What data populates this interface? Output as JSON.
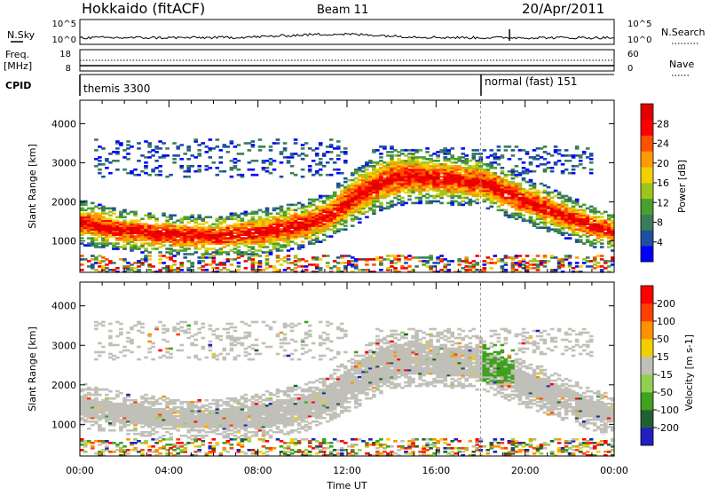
{
  "header": {
    "station": "Hokkaido (fitACF)",
    "beam": "Beam 11",
    "date": "20/Apr/2011"
  },
  "side_labels": {
    "nsky": "N.Sky",
    "nsearch": "N.Search",
    "freq_line1": "Freq.",
    "freq_line2": "[MHz]",
    "nave": "Nave",
    "cpid": "CPID"
  },
  "noise_panel": {
    "left_ticks": [
      "10^5",
      "10^0"
    ],
    "right_ticks": [
      "10^5",
      "10^0"
    ]
  },
  "freq_panel": {
    "left_ticks": [
      "18",
      "8"
    ],
    "right_ticks": [
      "60",
      "0"
    ]
  },
  "cpid_panel": {
    "segments": [
      {
        "label": "themis 3300",
        "start_hour": 0
      },
      {
        "label": "normal (fast) 151",
        "start_hour": 18
      }
    ]
  },
  "x_axis": {
    "label": "Time UT",
    "ticks": [
      "00:00",
      "04:00",
      "08:00",
      "12:00",
      "16:00",
      "20:00",
      "00:00"
    ]
  },
  "chart_data": [
    {
      "type": "heatmap",
      "name": "power-panel",
      "ylabel": "Slant Range [km]",
      "yticks": [
        1000,
        2000,
        3000,
        4000
      ],
      "ylim": [
        200,
        4600
      ],
      "xlim_hours": [
        0,
        24
      ],
      "colorbar": {
        "label": "Power [dB]",
        "ticks": [
          "28",
          "24",
          "20",
          "16",
          "12",
          "8",
          "4"
        ],
        "colors": [
          "#0000ff",
          "#1e4fa0",
          "#3a7d5a",
          "#4aa02e",
          "#9ec41e",
          "#f0d000",
          "#ff9a00",
          "#ff5000",
          "#ff0000",
          "#e00000"
        ]
      },
      "main_band_km": {
        "hours": [
          0,
          2,
          4,
          6,
          8,
          10,
          11,
          12,
          13,
          14,
          15,
          16,
          17,
          18,
          19,
          20,
          21,
          22,
          23,
          24
        ],
        "center": [
          1450,
          1250,
          1150,
          1100,
          1200,
          1400,
          1600,
          2000,
          2350,
          2600,
          2650,
          2600,
          2550,
          2500,
          2250,
          2000,
          1800,
          1550,
          1350,
          1200
        ],
        "width": [
          550,
          450,
          450,
          450,
          600,
          600,
          600,
          800,
          850,
          850,
          800,
          750,
          700,
          700,
          650,
          600,
          550,
          500,
          450,
          400
        ]
      }
    },
    {
      "type": "heatmap",
      "name": "velocity-panel",
      "ylabel": "Slant Range [km]",
      "yticks": [
        1000,
        2000,
        3000,
        4000
      ],
      "ylim": [
        200,
        4600
      ],
      "xlim_hours": [
        0,
        24
      ],
      "colorbar": {
        "label": "Velocity [m s-1]",
        "ticks": [
          "200",
          "100",
          "50",
          "15",
          "-15",
          "-50",
          "-100",
          "-200"
        ],
        "colors": [
          "#2020c0",
          "#206030",
          "#40a020",
          "#90d050",
          "#c0c0b8",
          "#f0d000",
          "#ff9000",
          "#ff4000",
          "#ff0000"
        ]
      },
      "ground_scatter_color": "#c0c0b8"
    }
  ]
}
